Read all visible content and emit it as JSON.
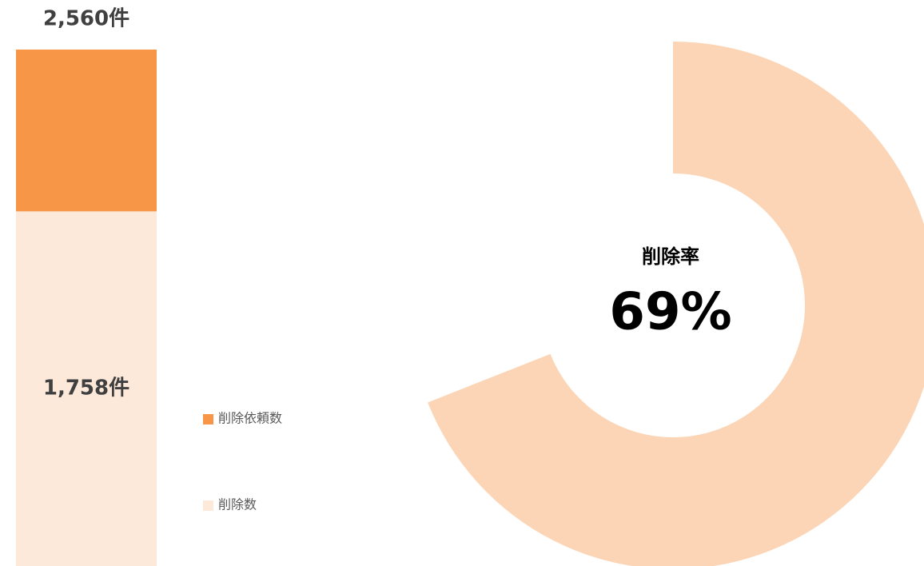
{
  "chart_data": [
    {
      "type": "bar",
      "barmode": "overlay",
      "categories": [
        null
      ],
      "series": [
        {
          "name": "削除依頼数",
          "color": "#f79646",
          "values": [
            2560
          ],
          "value_labels": [
            "2,560件"
          ]
        },
        {
          "name": "削除数",
          "color": "#fde9d9",
          "values": [
            1758
          ],
          "value_labels": [
            "1,758件"
          ]
        }
      ],
      "ylim": [
        0,
        2560
      ],
      "legend": "right"
    },
    {
      "type": "donut",
      "title": "削除率",
      "values": [
        69
      ],
      "value_labels": [
        "69%"
      ],
      "color": "#fbd5b5"
    }
  ]
}
